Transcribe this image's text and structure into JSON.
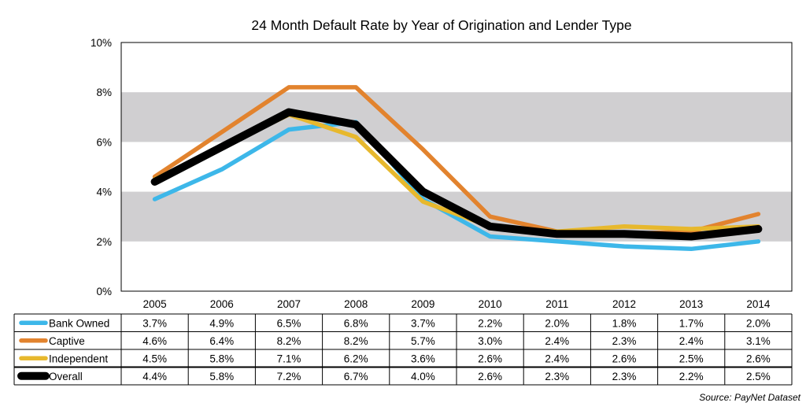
{
  "chart_data": {
    "type": "line",
    "title": "24 Month Default Rate by Year of Origination and Lender Type",
    "x": [
      "2005",
      "2006",
      "2007",
      "2008",
      "2009",
      "2010",
      "2011",
      "2012",
      "2013",
      "2014"
    ],
    "ylim": [
      0,
      10
    ],
    "yticks": [
      "0%",
      "2%",
      "4%",
      "6%",
      "8%",
      "10%"
    ],
    "grid": "alternating shaded horizontal bands",
    "series": [
      {
        "name": "Bank Owned",
        "color": "#3DB7E9",
        "values": [
          3.7,
          4.9,
          6.5,
          6.8,
          3.7,
          2.2,
          2.0,
          1.8,
          1.7,
          2.0
        ],
        "labels": [
          "3.7%",
          "4.9%",
          "6.5%",
          "6.8%",
          "3.7%",
          "2.2%",
          "2.0%",
          "1.8%",
          "1.7%",
          "2.0%"
        ]
      },
      {
        "name": "Captive",
        "color": "#E2832E",
        "values": [
          4.6,
          6.4,
          8.2,
          8.2,
          5.7,
          3.0,
          2.4,
          2.3,
          2.4,
          3.1
        ],
        "labels": [
          "4.6%",
          "6.4%",
          "8.2%",
          "8.2%",
          "5.7%",
          "3.0%",
          "2.4%",
          "2.3%",
          "2.4%",
          "3.1%"
        ]
      },
      {
        "name": "Independent",
        "color": "#E7B82D",
        "values": [
          4.5,
          5.8,
          7.1,
          6.2,
          3.6,
          2.6,
          2.4,
          2.6,
          2.5,
          2.6
        ],
        "labels": [
          "4.5%",
          "5.8%",
          "7.1%",
          "6.2%",
          "3.6%",
          "2.6%",
          "2.4%",
          "2.6%",
          "2.5%",
          "2.6%"
        ]
      },
      {
        "name": "Overall",
        "color": "#000000",
        "values": [
          4.4,
          5.8,
          7.2,
          6.7,
          4.0,
          2.6,
          2.3,
          2.3,
          2.2,
          2.5
        ],
        "labels": [
          "4.4%",
          "5.8%",
          "7.2%",
          "6.7%",
          "4.0%",
          "2.6%",
          "2.3%",
          "2.3%",
          "2.2%",
          "2.5%"
        ]
      }
    ],
    "source": "Source: PayNet Dataset"
  }
}
